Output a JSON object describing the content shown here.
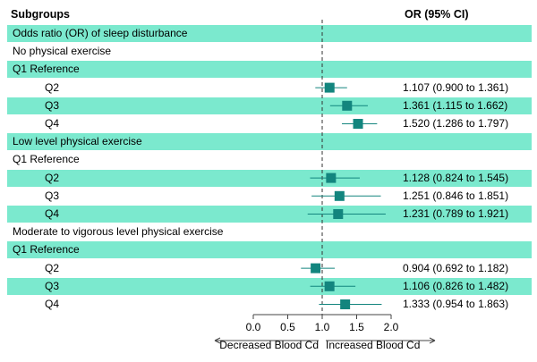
{
  "header": {
    "subgroups": "Subgroups",
    "or_ci": "OR (95% CI)"
  },
  "colors": {
    "band": "#7be9ce",
    "marker": "#13857e",
    "line": "#13857e"
  },
  "chart_data": {
    "type": "forest",
    "xlim": [
      0,
      2.0
    ],
    "reference_line": 1.0,
    "ticks": [
      "0.0",
      "0.5",
      "1.0",
      "1.5",
      "2.0"
    ],
    "tick_values": [
      0,
      0.5,
      1.0,
      1.5,
      2.0
    ],
    "xlabel_left": "Decreased Blood Cd",
    "xlabel_right": "Increased Blood Cd",
    "rows": [
      {
        "label": "Odds ratio (OR) of sleep disturbance",
        "level": 0,
        "shade": true
      },
      {
        "label": "No physical exercise",
        "level": 0,
        "shade": false
      },
      {
        "label": "Q1 Reference",
        "level": 0,
        "shade": true
      },
      {
        "label": "Q2",
        "level": 1,
        "shade": false,
        "or": 1.107,
        "lo": 0.9,
        "hi": 1.361,
        "text": "1.107 (0.900 to 1.361)"
      },
      {
        "label": "Q3",
        "level": 1,
        "shade": true,
        "or": 1.361,
        "lo": 1.115,
        "hi": 1.662,
        "text": "1.361 (1.115 to 1.662)"
      },
      {
        "label": "Q4",
        "level": 1,
        "shade": false,
        "or": 1.52,
        "lo": 1.286,
        "hi": 1.797,
        "text": "1.520 (1.286 to 1.797)"
      },
      {
        "label": "Low level physical exercise",
        "level": 0,
        "shade": true
      },
      {
        "label": "Q1 Reference",
        "level": 0,
        "shade": false
      },
      {
        "label": "Q2",
        "level": 1,
        "shade": true,
        "or": 1.128,
        "lo": 0.824,
        "hi": 1.545,
        "text": "1.128 (0.824 to 1.545)"
      },
      {
        "label": "Q3",
        "level": 1,
        "shade": false,
        "or": 1.251,
        "lo": 0.846,
        "hi": 1.851,
        "text": "1.251 (0.846 to 1.851)"
      },
      {
        "label": "Q4",
        "level": 1,
        "shade": true,
        "or": 1.231,
        "lo": 0.789,
        "hi": 1.921,
        "text": "1.231 (0.789 to 1.921)"
      },
      {
        "label": "Moderate to vigorous level physical exercise",
        "level": 0,
        "shade": false
      },
      {
        "label": "Q1 Reference",
        "level": 0,
        "shade": true
      },
      {
        "label": "Q2",
        "level": 1,
        "shade": false,
        "or": 0.904,
        "lo": 0.692,
        "hi": 1.182,
        "text": "0.904 (0.692 to 1.182)"
      },
      {
        "label": "Q3",
        "level": 1,
        "shade": true,
        "or": 1.106,
        "lo": 0.826,
        "hi": 1.482,
        "text": "1.106 (0.826 to 1.482)"
      },
      {
        "label": "Q4",
        "level": 1,
        "shade": false,
        "or": 1.333,
        "lo": 0.954,
        "hi": 1.863,
        "text": "1.333 (0.954 to 1.863)"
      }
    ]
  }
}
